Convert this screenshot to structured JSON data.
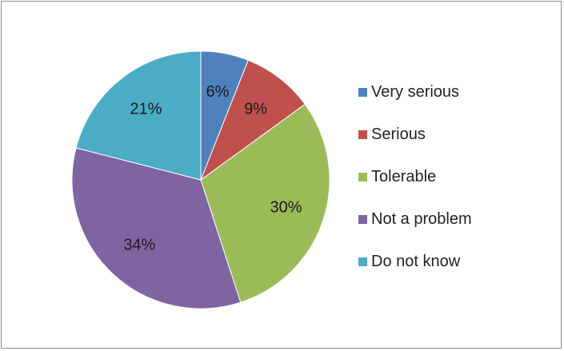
{
  "chart_data": {
    "type": "pie",
    "categories": [
      "Very serious",
      "Serious",
      "Tolerable",
      "Not a problem",
      "Do not know"
    ],
    "values": [
      6,
      9,
      30,
      34,
      21
    ],
    "value_labels": [
      "6%",
      "9%",
      "30%",
      "34%",
      "21%"
    ],
    "colors": [
      "#4f81bd",
      "#c0504d",
      "#9bbb59",
      "#8064a2",
      "#4bacc6"
    ],
    "start_angle": "12 o'clock",
    "direction": "clockwise",
    "legend_position": "right"
  }
}
